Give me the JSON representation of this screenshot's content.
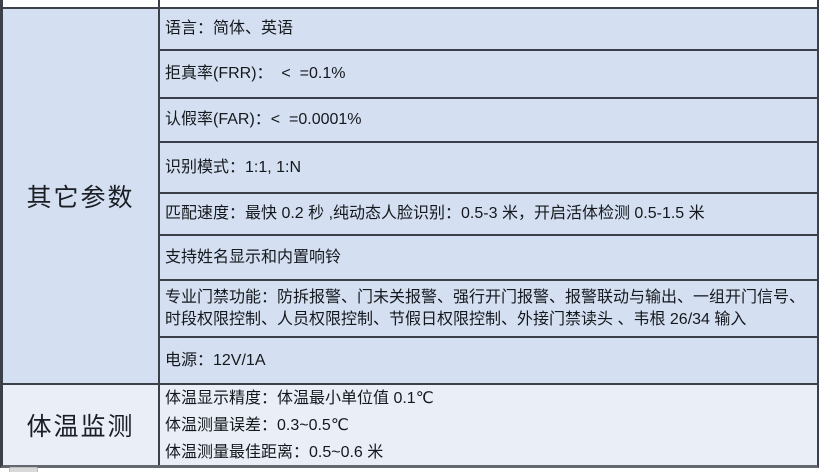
{
  "table": {
    "sections": [
      {
        "label": "其它参数",
        "rows": [
          "语言：简体、英语",
          "拒真率(FRR)：  <  =0.1%",
          "认假率(FAR)：<  =0.0001%",
          "识别模式：1:1, 1:N",
          "匹配速度：最快 0.2 秒 ,纯动态人脸识别：0.5-3 米，开启活体检测 0.5-1.5 米",
          "支持姓名显示和内置响铃",
          "专业门禁功能：防拆报警、门未关报警、强行开门报警、报警联动与输出、一组开门信号、时段权限控制、人员权限控制、节假日权限控制、外接门禁读头 、韦根 26/34 输入",
          "电源：12V/1A"
        ]
      },
      {
        "label": "体温监测",
        "rows": [
          "体温显示精度：体温最小单位值 0.1℃",
          "体温测量误差：0.3~0.5℃",
          "体温测量最佳距离：0.5~0.6 米"
        ]
      }
    ]
  },
  "colors": {
    "section_other_bg": "#d4e0f1",
    "section_temp_bg": "#e9eef7",
    "border_color": "#3c4048"
  }
}
